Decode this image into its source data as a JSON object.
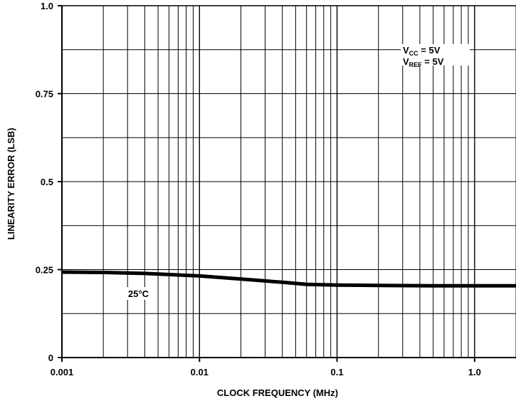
{
  "chart_data": {
    "type": "line",
    "xlabel": "CLOCK FREQUENCY (MHz)",
    "ylabel": "LINEARITY ERROR (LSB)",
    "x_scale": "log",
    "xlim": [
      0.001,
      2.0
    ],
    "ylim": [
      0,
      1.0
    ],
    "x_ticks": [
      {
        "value": 0.001,
        "label": "0.001"
      },
      {
        "value": 0.01,
        "label": "0.01"
      },
      {
        "value": 0.1,
        "label": "0.1"
      },
      {
        "value": 1.0,
        "label": "1.0"
      }
    ],
    "y_ticks": [
      {
        "value": 0,
        "label": "0"
      },
      {
        "value": 0.25,
        "label": "0.25"
      },
      {
        "value": 0.5,
        "label": "0.5"
      },
      {
        "value": 0.75,
        "label": "0.75"
      },
      {
        "value": 1.0,
        "label": "1.0"
      }
    ],
    "grid": true,
    "series": [
      {
        "name": "25°C",
        "x": [
          0.001,
          0.002,
          0.004,
          0.01,
          0.02,
          0.04,
          0.06,
          0.1,
          0.2,
          0.5,
          1.0,
          2.0
        ],
        "y": [
          0.243,
          0.242,
          0.239,
          0.232,
          0.223,
          0.214,
          0.208,
          0.206,
          0.205,
          0.204,
          0.204,
          0.204
        ]
      }
    ],
    "annotations": {
      "vcc": {
        "prefix": "V",
        "sub": "CC",
        "suffix": " = 5V"
      },
      "vref": {
        "prefix": "V",
        "sub": "REF",
        "suffix": " = 5V"
      },
      "series_label": "25°C"
    },
    "line_color": "#000000"
  }
}
